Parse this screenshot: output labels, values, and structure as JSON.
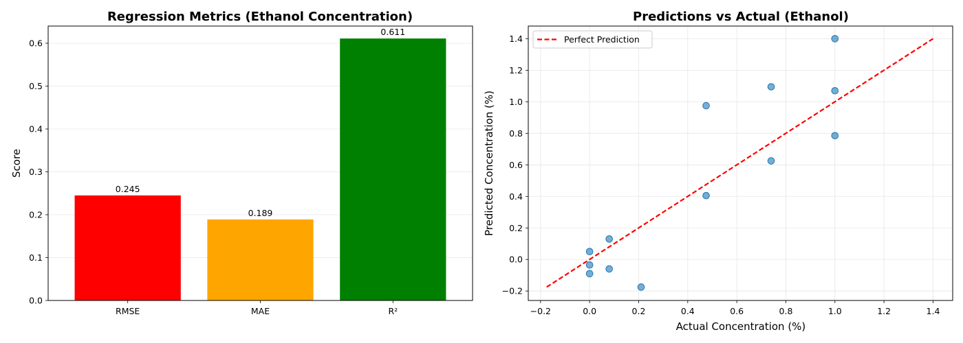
{
  "chart_data": [
    {
      "type": "bar",
      "title": "Regression Metrics (Ethanol Concentration)",
      "xlabel": "",
      "ylabel": "Score",
      "categories": [
        "RMSE",
        "MAE",
        "R²"
      ],
      "values": [
        0.245,
        0.189,
        0.611
      ],
      "value_labels": [
        "0.245",
        "0.189",
        "0.611"
      ],
      "colors": [
        "#ff0000",
        "#ffa500",
        "#008000"
      ],
      "ylim": [
        0,
        0.64
      ],
      "yticks": [
        0.0,
        0.1,
        0.2,
        0.3,
        0.4,
        0.5,
        0.6
      ],
      "ytick_labels": [
        "0.0",
        "0.1",
        "0.2",
        "0.3",
        "0.4",
        "0.5",
        "0.6"
      ],
      "grid": "y"
    },
    {
      "type": "scatter",
      "title": "Predictions vs Actual (Ethanol)",
      "xlabel": "Actual Concentration (%)",
      "ylabel": "Predicted Concentration (%)",
      "xlim": [
        -0.25,
        1.48
      ],
      "ylim": [
        -0.26,
        1.48
      ],
      "xticks": [
        -0.2,
        0.0,
        0.2,
        0.4,
        0.6,
        0.8,
        1.0,
        1.2,
        1.4
      ],
      "xtick_labels": [
        "−0.2",
        "0.0",
        "0.2",
        "0.4",
        "0.6",
        "0.8",
        "1.0",
        "1.2",
        "1.4"
      ],
      "yticks": [
        -0.2,
        0.0,
        0.2,
        0.4,
        0.6,
        0.8,
        1.0,
        1.2,
        1.4
      ],
      "ytick_labels": [
        "−0.2",
        "0.0",
        "0.2",
        "0.4",
        "0.6",
        "0.8",
        "1.0",
        "1.2",
        "1.4"
      ],
      "points": [
        {
          "x": 0.0,
          "y": 0.05
        },
        {
          "x": 0.0,
          "y": -0.035
        },
        {
          "x": 0.0,
          "y": -0.09
        },
        {
          "x": 0.08,
          "y": 0.13
        },
        {
          "x": 0.08,
          "y": -0.06
        },
        {
          "x": 0.21,
          "y": -0.175
        },
        {
          "x": 0.475,
          "y": 0.975
        },
        {
          "x": 0.475,
          "y": 0.405
        },
        {
          "x": 0.74,
          "y": 1.095
        },
        {
          "x": 0.74,
          "y": 0.625
        },
        {
          "x": 1.0,
          "y": 1.4
        },
        {
          "x": 1.0,
          "y": 1.07
        },
        {
          "x": 1.0,
          "y": 0.785
        }
      ],
      "point_color": "#1f77b4",
      "reference_line": {
        "name": "Perfect Prediction",
        "x": [
          -0.175,
          1.4
        ],
        "y": [
          -0.175,
          1.4
        ],
        "color": "#ff0000",
        "style": "dashed"
      },
      "legend": {
        "position": "top-left",
        "entries": [
          "Perfect Prediction"
        ]
      },
      "grid": "both"
    }
  ]
}
